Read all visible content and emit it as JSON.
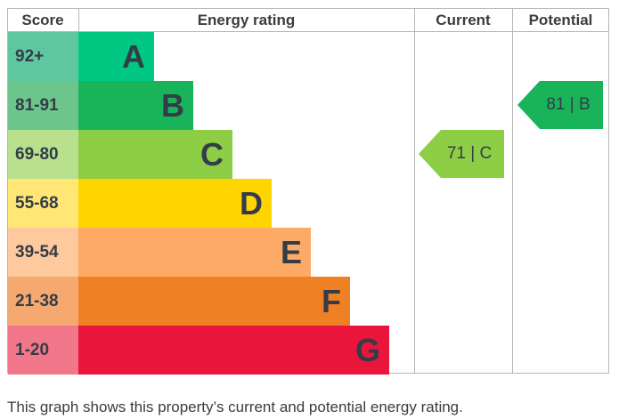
{
  "headers": {
    "score": "Score",
    "rating": "Energy rating",
    "current": "Current",
    "potential": "Potential"
  },
  "chart_data": {
    "type": "bar",
    "bands": [
      {
        "score": "92+",
        "letter": "A",
        "color": "#00c781",
        "score_color": "#5fc7a0"
      },
      {
        "score": "81-91",
        "letter": "B",
        "color": "#19b459",
        "score_color": "#6cc68c"
      },
      {
        "score": "69-80",
        "letter": "C",
        "color": "#8dce46",
        "score_color": "#b8e08d"
      },
      {
        "score": "55-68",
        "letter": "D",
        "color": "#ffd500",
        "score_color": "#ffe675"
      },
      {
        "score": "39-54",
        "letter": "E",
        "color": "#fcaa65",
        "score_color": "#fdc99d"
      },
      {
        "score": "21-38",
        "letter": "F",
        "color": "#ef8023",
        "score_color": "#f5a86f"
      },
      {
        "score": "1-20",
        "letter": "G",
        "color": "#e9153b",
        "score_color": "#f2778a"
      }
    ],
    "current": {
      "value": 71,
      "band": "C",
      "label": "71 | C",
      "color": "#8dce46"
    },
    "potential": {
      "value": 81,
      "band": "B",
      "label": "81 | B",
      "color": "#19b459"
    }
  },
  "caption": "This graph shows this property’s current and potential energy rating."
}
